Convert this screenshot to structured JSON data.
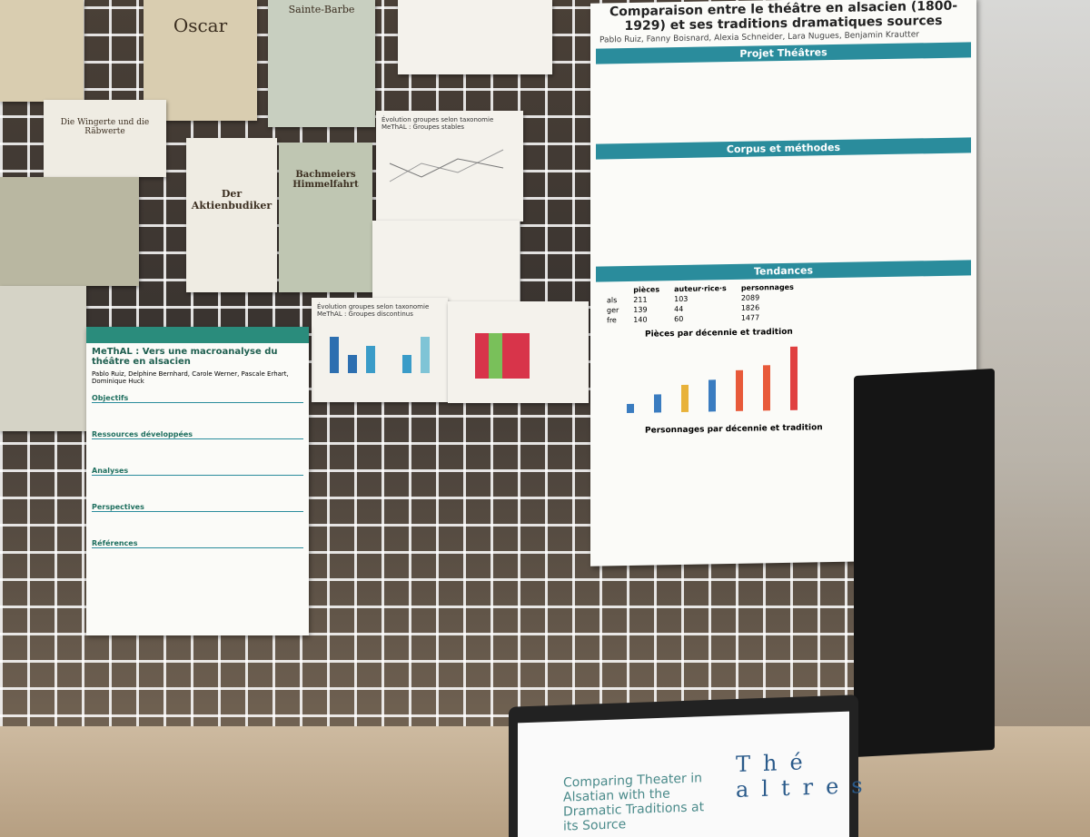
{
  "poster_main": {
    "title": "Comparaison entre le théâtre en alsacien (1800-1929) et ses traditions dramatiques sources",
    "authors": "Pablo Ruiz, Fanny Boisnard, Alexia Schneider, Lara Nugues, Benjamin Krautter",
    "sections": [
      "Projet Théâtres",
      "Corpus et méthodes",
      "Tendances"
    ],
    "table": {
      "header": [
        "pièces",
        "auteur·rice·s",
        "personnages"
      ],
      "rows": [
        [
          "als",
          "211",
          "103",
          "2089"
        ],
        [
          "ger",
          "139",
          "44",
          "1826"
        ],
        [
          "fre",
          "140",
          "60",
          "1477"
        ]
      ]
    },
    "chart_titles": [
      "Pièces par décennie et tradition",
      "Personnages par décennie et tradition"
    ]
  },
  "poster_left": {
    "title": "MeThAL : Vers une macroanalyse du théâtre en alsacien",
    "authors": "Pablo Ruiz, Delphine Bernhard, Carole Werner, Pascale Erhart, Dominique Huck",
    "sections": [
      "Objectifs",
      "Ressources développées",
      "Analyses",
      "Perspectives",
      "Références"
    ]
  },
  "small_charts": [
    "Évolution groupes selon taxonomie MeThAL : Groupes stables",
    "Évolution groupes selon taxonomie MeThAL : Groupes discontinus"
  ],
  "old_prints": [
    "Oscar",
    "Sainte-Barbe",
    "Der Aktienbudiker",
    "Bachmeiers Himmelfahrt",
    "Die Wingerte und die Räbwerte"
  ],
  "laptop": {
    "text": "Comparing Theater in Alsatian with the Dramatic Traditions at its Source",
    "logo": "Thé altres"
  }
}
